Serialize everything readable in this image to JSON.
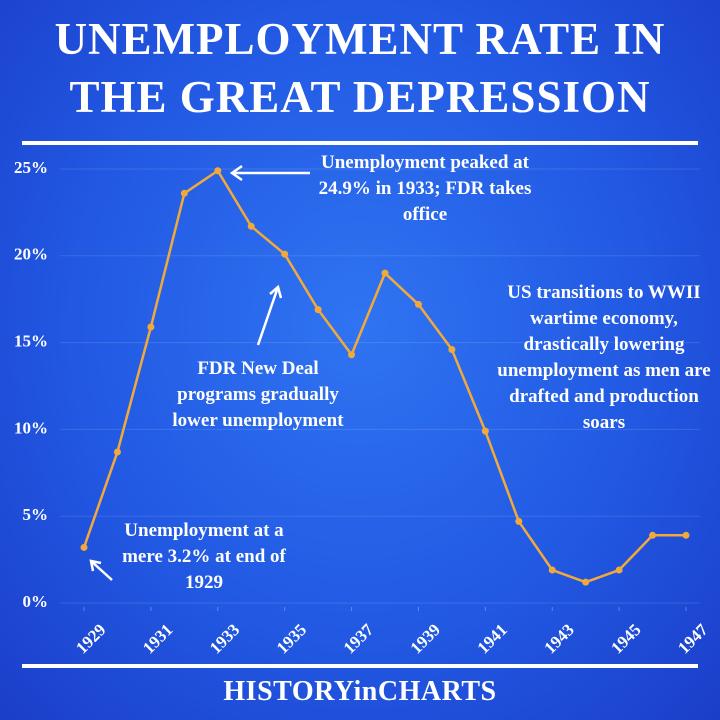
{
  "chart_data": {
    "type": "line",
    "title": "UNEMPLOYMENT RATE IN THE GREAT DEPRESSION",
    "x": [
      1929,
      1930,
      1931,
      1932,
      1933,
      1934,
      1935,
      1936,
      1937,
      1938,
      1939,
      1940,
      1941,
      1942,
      1943,
      1944,
      1945,
      1946,
      1947
    ],
    "values": [
      3.2,
      8.7,
      15.9,
      23.6,
      24.9,
      21.7,
      20.1,
      16.9,
      14.3,
      19.0,
      17.2,
      14.6,
      9.9,
      4.7,
      1.9,
      1.2,
      1.9,
      3.9,
      3.9
    ],
    "color": "#f2a93b",
    "xlim": [
      1929,
      1947
    ],
    "xticks": [
      1929,
      1931,
      1933,
      1935,
      1937,
      1939,
      1941,
      1943,
      1945,
      1947
    ],
    "ylim": [
      0,
      25
    ],
    "yticks": [
      {
        "value": 0,
        "label": "0%"
      },
      {
        "value": 5,
        "label": "5%"
      },
      {
        "value": 10,
        "label": "10%"
      },
      {
        "value": 15,
        "label": "15%"
      },
      {
        "value": 20,
        "label": "20%"
      },
      {
        "value": 25,
        "label": "25%"
      }
    ],
    "grid": true,
    "annotations": [
      "Unemployment peaked at 24.9% in 1933; FDR takes office",
      "FDR New Deal programs gradually lower unemployment",
      "US transitions to WWII wartime economy, drastically lowering unemployment as men are drafted and production soars",
      "Unemployment at a mere 3.2% at end of 1929"
    ],
    "footer": "HISTORYinCHARTS"
  }
}
